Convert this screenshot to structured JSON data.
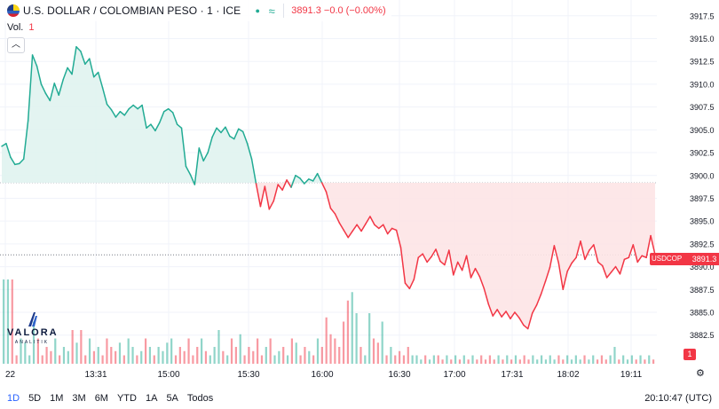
{
  "header": {
    "symbol": "U.S. DOLLAR / COLOMBIAN PESO · 1 · ICE",
    "market_status_icon": "market-open-dot-icon",
    "wave_icon": "approx-wave-icon",
    "price_change": "3891.3  −0.0 (−0.00%)"
  },
  "volume_legend": {
    "label": "Vol.",
    "value": "1"
  },
  "collapse_icon": "chevron-up-icon",
  "logo": {
    "name": "VALORA",
    "sub": "ANALITIK"
  },
  "price_badge": {
    "symbol": "USDCOP",
    "price": "3891.3"
  },
  "volume_badge": "1",
  "settings_icon": "gear-icon",
  "timeframes": [
    "1D",
    "5D",
    "1M",
    "3M",
    "6M",
    "YTD",
    "1A",
    "5A",
    "Todos"
  ],
  "active_timeframe": "1D",
  "clock": "20:10:47 (UTC)",
  "colors": {
    "up": "#22ab94",
    "down": "#f23645",
    "up_fill": "#e0f3ef",
    "down_fill": "#fde4e6",
    "grid": "#f0f3fa"
  },
  "chart_data": {
    "type": "area",
    "baseline": 3899.2,
    "last": 3891.3,
    "ylim": [
      3881.5,
      3918.5
    ],
    "yticks": [
      "3917.5",
      "3915.0",
      "3912.5",
      "3910.0",
      "3907.5",
      "3905.0",
      "3902.5",
      "3900.0",
      "3897.5",
      "3895.0",
      "3892.5",
      "3890.0",
      "3887.5",
      "3885.0",
      "3882.5"
    ],
    "xticks": [
      "22",
      "13:31",
      "15:00",
      "15:30",
      "16:00",
      "16:30",
      "17:00",
      "17:31",
      "18:02",
      "19:11"
    ],
    "series": [
      3903.2,
      3903.5,
      3902.0,
      3901.2,
      3901.3,
      3901.8,
      3906.0,
      3913.2,
      3912.0,
      3910.0,
      3909.0,
      3908.2,
      3910.1,
      3908.8,
      3910.5,
      3911.8,
      3911.1,
      3914.1,
      3913.6,
      3912.2,
      3912.8,
      3910.8,
      3911.3,
      3909.6,
      3907.8,
      3907.2,
      3906.4,
      3907.0,
      3906.6,
      3907.3,
      3907.7,
      3907.3,
      3907.7,
      3905.2,
      3905.6,
      3904.9,
      3905.8,
      3907.0,
      3907.3,
      3906.9,
      3905.6,
      3905.2,
      3901.0,
      3900.1,
      3899.0,
      3903.0,
      3901.6,
      3902.5,
      3904.2,
      3905.2,
      3904.7,
      3905.3,
      3904.3,
      3904.0,
      3905.1,
      3904.8,
      3903.5,
      3901.8,
      3899.1,
      3896.6,
      3898.8,
      3896.3,
      3897.2,
      3899.0,
      3898.4,
      3899.5,
      3898.7,
      3900.0,
      3899.7,
      3899.1,
      3899.6,
      3899.4,
      3900.2,
      3899.2,
      3898.2,
      3896.4,
      3895.8,
      3894.8,
      3894.0,
      3893.2,
      3893.9,
      3894.6,
      3893.9,
      3894.7,
      3895.5,
      3894.6,
      3894.2,
      3894.6,
      3893.6,
      3894.2,
      3894.0,
      3892.1,
      3888.2,
      3887.6,
      3888.6,
      3891.0,
      3891.4,
      3890.5,
      3891.1,
      3891.9,
      3890.6,
      3890.2,
      3891.8,
      3889.1,
      3890.5,
      3889.6,
      3891.2,
      3888.8,
      3889.8,
      3888.9,
      3887.6,
      3885.9,
      3884.6,
      3885.3,
      3884.5,
      3885.1,
      3884.3,
      3885.0,
      3884.4,
      3883.6,
      3883.2,
      3884.9,
      3885.8,
      3887.0,
      3888.4,
      3889.9,
      3892.3,
      3890.4,
      3887.5,
      3889.5,
      3890.4,
      3891.0,
      3892.8,
      3890.8,
      3891.8,
      3892.4,
      3890.5,
      3890.1,
      3888.8,
      3889.4,
      3890.0,
      3889.2,
      3890.8,
      3891.0,
      3892.4,
      3890.5,
      3891.2,
      3891.0,
      3893.4,
      3891.3
    ],
    "volume": [
      1,
      1,
      1,
      0.1,
      0.3,
      0.25,
      0.1,
      0.5,
      0.3,
      0.1,
      0.2,
      0.15,
      0.3,
      0.1,
      0.2,
      0.15,
      0.4,
      0.25,
      0.4,
      0.1,
      0.3,
      0.15,
      0.2,
      0.1,
      0.3,
      0.2,
      0.15,
      0.25,
      0.1,
      0.3,
      0.2,
      0.1,
      0.15,
      0.3,
      0.2,
      0.1,
      0.2,
      0.15,
      0.25,
      0.3,
      0.1,
      0.2,
      0.15,
      0.3,
      0.1,
      0.2,
      0.3,
      0.15,
      0.1,
      0.2,
      0.4,
      0.15,
      0.1,
      0.3,
      0.2,
      0.35,
      0.1,
      0.2,
      0.15,
      0.3,
      0.1,
      0.2,
      0.3,
      0.1,
      0.15,
      0.2,
      0.1,
      0.3,
      0.25,
      0.1,
      0.2,
      0.15,
      0.1,
      0.3,
      0.2,
      0.55,
      0.35,
      0.3,
      0.2,
      0.5,
      0.75,
      0.85,
      0.6,
      0.2,
      0.1,
      0.6,
      0.3,
      0.25,
      0.5,
      0.1,
      0.2,
      0.1,
      0.15,
      0.1,
      0.2,
      0.1,
      0.1,
      0.05,
      0.1,
      0.05,
      0.1,
      0.1,
      0.05,
      0.1,
      0.05,
      0.1,
      0.05,
      0.1,
      0.05,
      0.1,
      0.05,
      0.1,
      0.05,
      0.1,
      0.05,
      0.1,
      0.05,
      0.1,
      0.05,
      0.1,
      0.05,
      0.1,
      0.05,
      0.1,
      0.05,
      0.1,
      0.05,
      0.1,
      0.05,
      0.1,
      0.05,
      0.1,
      0.05,
      0.1,
      0.05,
      0.1,
      0.05,
      0.1,
      0.05,
      0.1,
      0.05,
      0.1,
      0.2,
      0.05,
      0.1,
      0.05,
      0.1,
      0.05,
      0.1,
      0.05,
      0.1,
      0.05
    ]
  }
}
